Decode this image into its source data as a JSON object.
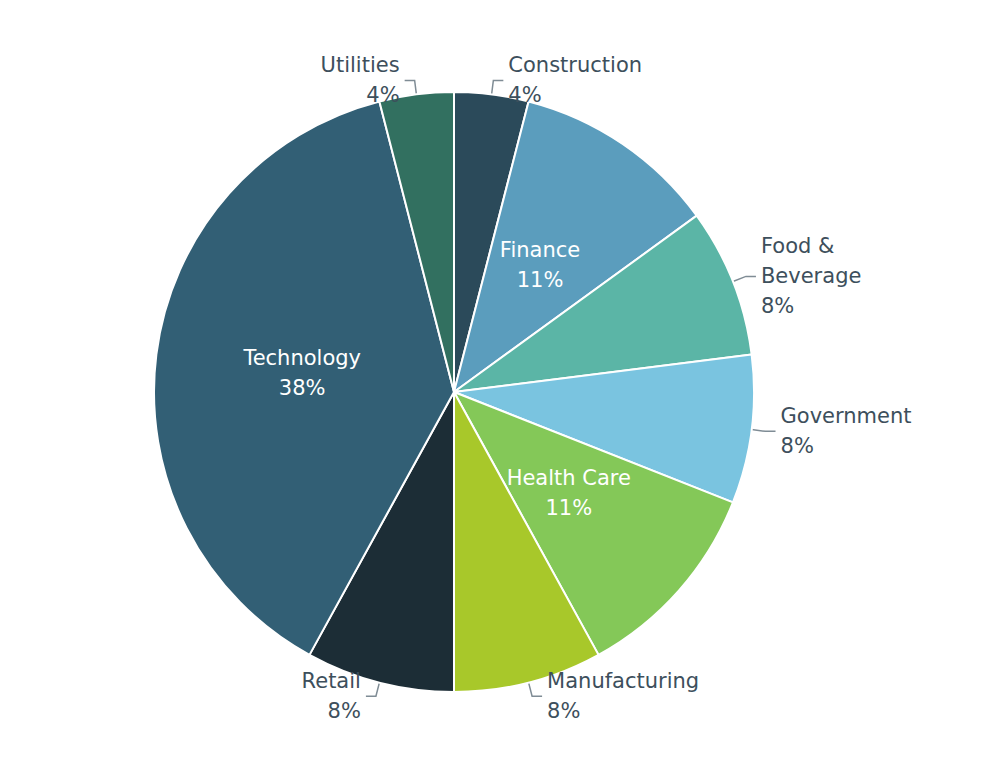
{
  "chart_data": {
    "type": "pie",
    "categories": [
      "Construction",
      "Finance",
      "Food &\nBeverage",
      "Government",
      "Health Care",
      "Manufacturing",
      "Retail",
      "Technology",
      "Utilities"
    ],
    "values": [
      4,
      11,
      8,
      8,
      11,
      8,
      8,
      38,
      4
    ],
    "value_labels": [
      "4%",
      "11%",
      "8%",
      "8%",
      "11%",
      "8%",
      "8%",
      "38%",
      "4%"
    ],
    "colors": [
      "#2b4a5a",
      "#5b9dbd",
      "#5bb5a6",
      "#7ac4e0",
      "#84c858",
      "#a8c82a",
      "#1c2d36",
      "#325f75",
      "#327060"
    ],
    "data_labels": true
  }
}
